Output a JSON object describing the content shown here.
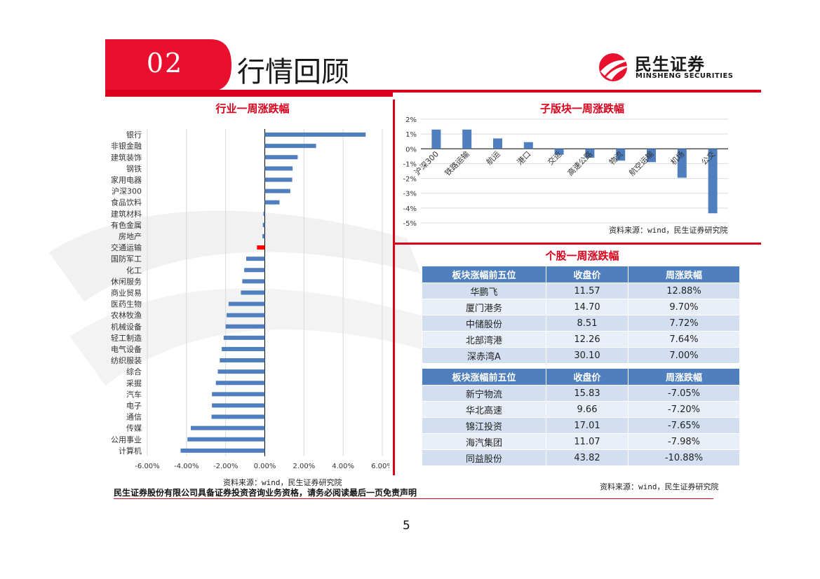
{
  "header": {
    "section_number": "02",
    "title": "行情回顾",
    "logo_cn": "民生证券",
    "logo_en": "MINSHENG SECURITIES"
  },
  "colors": {
    "accent": "#d9001b",
    "bar": "#4f7fbf",
    "highlight": "#ff0000",
    "table_head": "#4f7fbf"
  },
  "left_source": "资料来源：wind，民生证券研究院",
  "right_source": "资料来源：wind，民生证券研究院",
  "table_source": "资料来源：wind，民生证券研究院",
  "disclaimer": "民生证券股份有限公司具备证券投资咨询业务资格，请务必阅读最后一页免责声明",
  "page_number": "5",
  "chart_data": [
    {
      "type": "bar",
      "orientation": "horizontal",
      "title": "行业一周涨跌幅",
      "categories": [
        "银行",
        "非银金融",
        "建筑装饰",
        "钢铁",
        "家用电器",
        "沪深300",
        "食品饮料",
        "建筑材料",
        "有色金属",
        "房地产",
        "交通运输",
        "国防军工",
        "化工",
        "休闲服务",
        "商业贸易",
        "医药生物",
        "农林牧渔",
        "机械设备",
        "轻工制造",
        "电气设备",
        "纺织服装",
        "综合",
        "采掘",
        "汽车",
        "电子",
        "通信",
        "传媒",
        "公用事业",
        "计算机"
      ],
      "values": [
        5.15,
        2.62,
        1.68,
        1.42,
        1.4,
        1.3,
        0.75,
        -0.07,
        -0.1,
        -0.12,
        -0.4,
        -0.95,
        -1.05,
        -1.15,
        -1.22,
        -1.85,
        -1.95,
        -2.0,
        -2.1,
        -2.2,
        -2.3,
        -2.4,
        -2.5,
        -2.7,
        -2.7,
        -2.72,
        -3.78,
        -3.95,
        -4.3
      ],
      "highlight_category": "交通运输",
      "x_ticks": [
        "-6.00%",
        "-4.00%",
        "-2.00%",
        "0.00%",
        "2.00%",
        "4.00%",
        "6.00%"
      ],
      "xlim": [
        -6,
        6
      ],
      "grid": true
    },
    {
      "type": "bar",
      "title": "子版块一周涨跌幅",
      "categories": [
        "沪深300",
        "铁路运输",
        "航运",
        "港口",
        "交运",
        "高速公路",
        "物流",
        "航空运输",
        "机场",
        "公交"
      ],
      "values": [
        1.3,
        1.3,
        0.7,
        0.45,
        -0.4,
        -0.6,
        -0.8,
        -0.9,
        -1.95,
        -4.35
      ],
      "y_ticks": [
        "2%",
        "1%",
        "0%",
        "-1%",
        "-2%",
        "-3%",
        "-4%",
        "-5%"
      ],
      "ylim": [
        -5,
        2
      ],
      "grid": true
    }
  ],
  "stock_table": {
    "gainers_header": [
      "板块涨幅前五位",
      "收盘价",
      "周涨跌幅"
    ],
    "gainers": [
      [
        "华鹏飞",
        "11.57",
        "12.88%"
      ],
      [
        "厦门港务",
        "14.70",
        "9.70%"
      ],
      [
        "中储股份",
        "8.51",
        "7.72%"
      ],
      [
        "北部湾港",
        "12.26",
        "7.64%"
      ],
      [
        "深赤湾A",
        "30.10",
        "7.00%"
      ]
    ],
    "losers_header": [
      "板块涨幅前五位",
      "收盘价",
      "周涨跌幅"
    ],
    "losers": [
      [
        "新宁物流",
        "15.83",
        "-7.05%"
      ],
      [
        "华北高速",
        "9.66",
        "-7.20%"
      ],
      [
        "锦江投资",
        "17.01",
        "-7.65%"
      ],
      [
        "海汽集团",
        "11.07",
        "-7.98%"
      ],
      [
        "同益股份",
        "43.82",
        "-10.88%"
      ]
    ]
  }
}
